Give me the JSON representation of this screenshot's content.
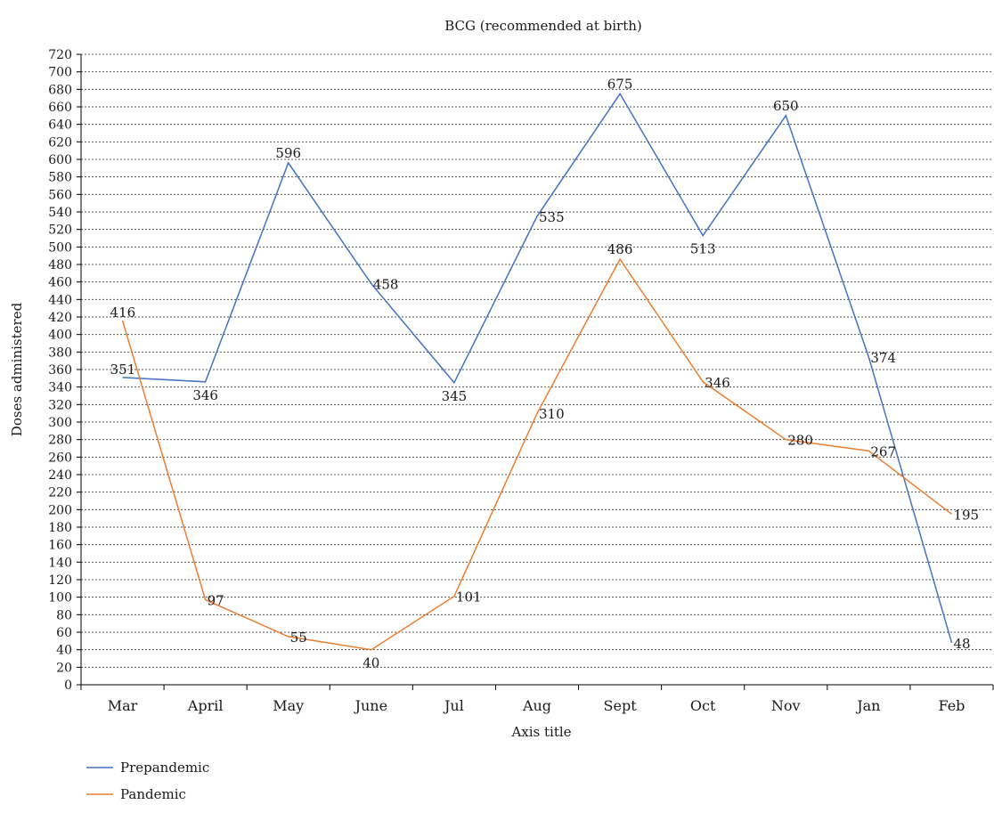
{
  "chart_data": {
    "type": "line",
    "title": "BCG (recommended at birth)",
    "xlabel": "Axis title",
    "ylabel": "Doses administered",
    "categories": [
      "Mar",
      "April",
      "May",
      "June",
      "Jul",
      "Aug",
      "Sept",
      "Oct",
      "Nov",
      "Jan",
      "Feb"
    ],
    "ylim": [
      0,
      720
    ],
    "ytick_step": 20,
    "grid": true,
    "legend_position": "bottom-left",
    "series": [
      {
        "name": "Prepandemic",
        "color": "#4472c4",
        "values": [
          351,
          346,
          596,
          458,
          345,
          535,
          675,
          513,
          650,
          374,
          48
        ],
        "labels": [
          "351",
          "346",
          "596",
          "458",
          "345",
          "535",
          "675",
          "513",
          "650",
          "374",
          "48"
        ]
      },
      {
        "name": "Pandemic",
        "color": "#ed7d31",
        "values": [
          416,
          97,
          55,
          40,
          101,
          310,
          486,
          346,
          280,
          267,
          195
        ],
        "labels": [
          "416",
          "97",
          "55",
          "40",
          "101",
          "310",
          "486",
          "346",
          "280",
          "267",
          "195"
        ]
      }
    ]
  }
}
